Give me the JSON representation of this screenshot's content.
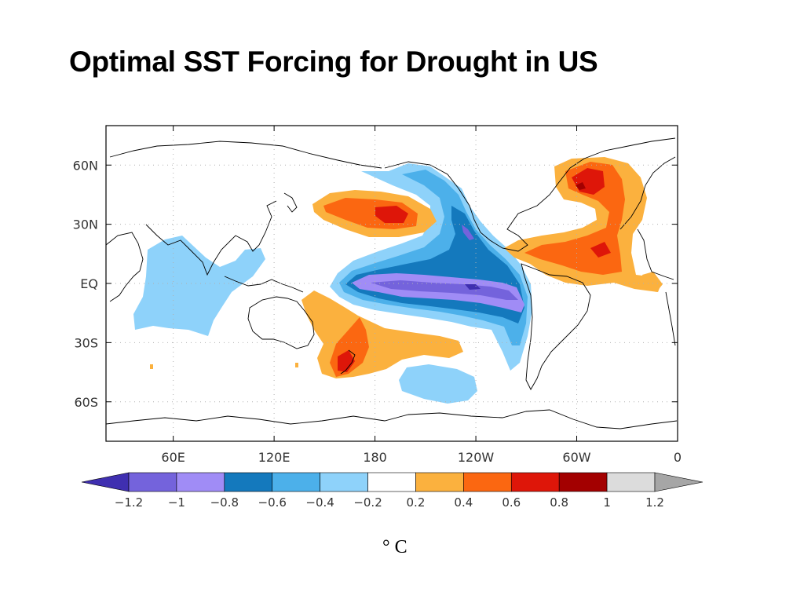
{
  "title": "Optimal SST Forcing for Drought in US",
  "map": {
    "projection": "cylindrical equidistant",
    "lon_range": [
      20,
      360
    ],
    "lat_range": [
      -80,
      80
    ],
    "lat_ticks": [
      {
        "value": 60,
        "label": "60N"
      },
      {
        "value": 30,
        "label": "30N"
      },
      {
        "value": 0,
        "label": "EQ"
      },
      {
        "value": -30,
        "label": "30S"
      },
      {
        "value": -60,
        "label": "60S"
      }
    ],
    "lon_ticks": [
      {
        "value": 60,
        "label": "60E"
      },
      {
        "value": 120,
        "label": "120E"
      },
      {
        "value": 180,
        "label": "180"
      },
      {
        "value": 240,
        "label": "120W"
      },
      {
        "value": 300,
        "label": "60W"
      },
      {
        "value": 360,
        "label": "0"
      }
    ],
    "grid": "dotted every 30 degrees",
    "anomaly_regions": [
      {
        "name": "North Pacific warm",
        "sign": "positive",
        "peak": 0.6,
        "center": [
          185,
          34
        ]
      },
      {
        "name": "North Atlantic warm",
        "sign": "positive",
        "peak": 0.8,
        "center": [
          310,
          45
        ]
      },
      {
        "name": "Tropical North Atlantic warm",
        "sign": "positive",
        "peak": 0.6,
        "center": [
          300,
          18
        ]
      },
      {
        "name": "Southwest Pacific warm",
        "sign": "positive",
        "peak": 0.6,
        "center": [
          170,
          -40
        ]
      },
      {
        "name": "Eastern tropical Pacific cool",
        "sign": "negative",
        "peak": -1.2,
        "center": [
          240,
          0
        ]
      },
      {
        "name": "Indian Ocean cool",
        "sign": "negative",
        "peak": -0.4,
        "center": [
          75,
          -10
        ]
      },
      {
        "name": "South Pacific cool",
        "sign": "negative",
        "peak": -0.4,
        "center": [
          225,
          -50
        ]
      }
    ]
  },
  "colorbar": {
    "labels": [
      "−1.2",
      "−1",
      "−0.8",
      "−0.6",
      "−0.4",
      "−0.2",
      "0.2",
      "0.4",
      "0.6",
      "0.8",
      "1",
      "1.2"
    ],
    "colors": {
      "below_min": "#3f2fb0",
      "bins": [
        "#7463dc",
        "#a08cf6",
        "#1479bd",
        "#4cb0ea",
        "#8ed2fa",
        "#ffffff",
        "#fbb13e",
        "#fb6711",
        "#de1609",
        "#a30000",
        "#dcdcdc"
      ],
      "above_max": "#a6a6a6"
    }
  },
  "unit": "° C"
}
